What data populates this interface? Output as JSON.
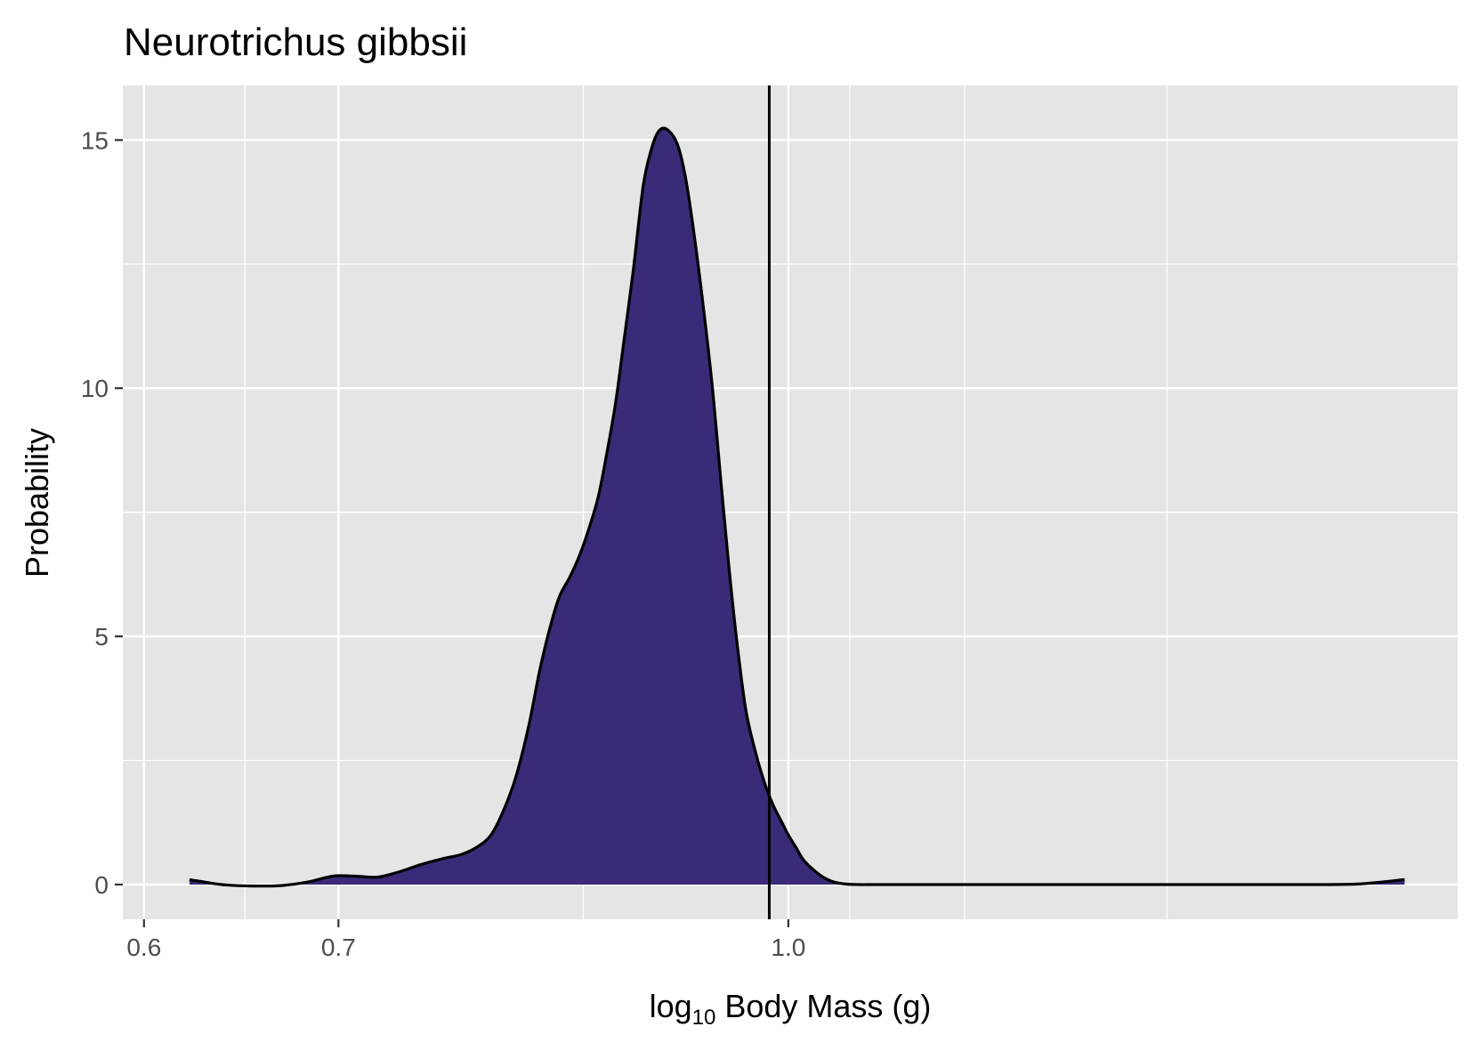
{
  "chart_data": {
    "type": "area",
    "title": "Neurotrichus gibbsii",
    "xlabel": {
      "prefix": "log",
      "sub": "10",
      "suffix": " Body Mass (g)"
    },
    "ylabel": "Probability",
    "x_scale": "log",
    "xlim": [
      0.59,
      1.7
    ],
    "ylim": [
      -0.7,
      16.1
    ],
    "x_ticks": [
      0.6,
      0.7,
      1.0
    ],
    "x_tick_labels": [
      "0.6",
      "0.7",
      "1.0"
    ],
    "x_minor_ticks": [
      0.65,
      0.85,
      1.05,
      1.15,
      1.35
    ],
    "y_ticks": [
      0,
      5,
      10,
      15
    ],
    "y_tick_labels": [
      "0",
      "5",
      "10",
      "15"
    ],
    "y_minor_ticks": [
      2.5,
      7.5,
      12.5
    ],
    "grid": true,
    "vline_x": 0.985,
    "fill_color": "#3a2a78",
    "line_color": "#000000",
    "panel_color": "#e5e5e5",
    "series": [
      {
        "x": [
          0.622,
          0.638,
          0.654,
          0.669,
          0.683,
          0.697,
          0.709,
          0.722,
          0.734,
          0.747,
          0.76,
          0.771,
          0.781,
          0.79,
          0.798,
          0.806,
          0.814,
          0.821,
          0.828,
          0.834,
          0.841,
          0.847,
          0.853,
          0.86,
          0.866,
          0.872,
          0.878,
          0.884,
          0.888,
          0.892,
          0.898,
          0.903,
          0.909,
          0.916,
          0.922,
          0.928,
          0.935,
          0.942,
          0.948,
          0.954,
          0.96,
          0.967,
          0.975,
          0.982,
          0.988,
          0.994,
          1.0,
          1.006,
          1.012,
          1.02,
          1.028,
          1.037,
          1.047,
          1.058,
          1.068,
          1.08,
          1.1,
          1.15,
          1.25,
          1.35,
          1.45,
          1.53,
          1.57,
          1.6,
          1.63
        ],
        "y": [
          0.1,
          0.0,
          -0.03,
          -0.02,
          0.05,
          0.17,
          0.17,
          0.15,
          0.25,
          0.4,
          0.52,
          0.6,
          0.75,
          1.0,
          1.5,
          2.2,
          3.2,
          4.3,
          5.2,
          5.8,
          6.2,
          6.6,
          7.1,
          7.8,
          8.7,
          9.7,
          11.0,
          12.3,
          13.3,
          14.2,
          14.9,
          15.2,
          15.2,
          14.9,
          14.2,
          13.1,
          11.6,
          9.9,
          8.1,
          6.4,
          4.9,
          3.5,
          2.6,
          2.0,
          1.6,
          1.3,
          1.0,
          0.75,
          0.5,
          0.3,
          0.15,
          0.05,
          0.01,
          0.0,
          0.0,
          0.0,
          0.0,
          0.0,
          0.0,
          0.0,
          0.0,
          0.0,
          0.01,
          0.05,
          0.1
        ]
      }
    ]
  }
}
